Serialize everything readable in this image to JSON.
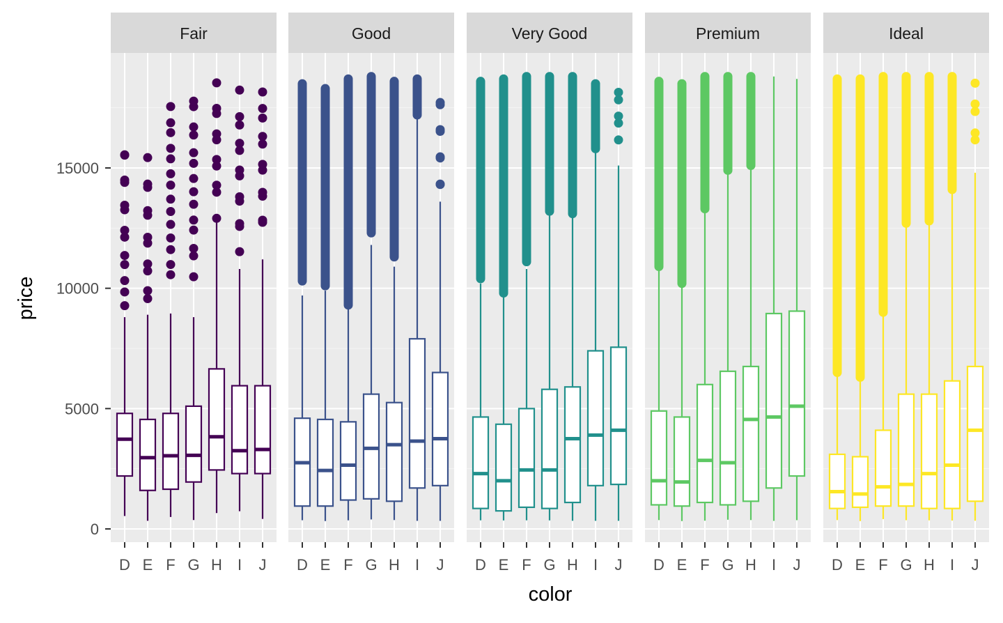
{
  "chart_data": {
    "type": "boxplot",
    "xlabel": "color",
    "ylabel": "price",
    "yticks": [
      0,
      5000,
      10000,
      15000
    ],
    "ylim": [
      -500,
      19500
    ],
    "categories": [
      "D",
      "E",
      "F",
      "G",
      "H",
      "I",
      "J"
    ],
    "grid": true,
    "facets": [
      {
        "name": "Fair",
        "color": "#440154",
        "boxes": [
          {
            "min": 536,
            "q1": 2200,
            "median": 3730,
            "q3": 4800,
            "whisker_high": 8800,
            "outliers_low": 8700,
            "outliers_high": 16400,
            "outlier_sparse": true
          },
          {
            "min": 337,
            "q1": 1600,
            "median": 2960,
            "q3": 4550,
            "whisker_high": 8900,
            "outliers_low": 8950,
            "outliers_high": 15600,
            "outlier_sparse": true
          },
          {
            "min": 496,
            "q1": 1650,
            "median": 3040,
            "q3": 4800,
            "whisker_high": 8950,
            "outliers_low": 9900,
            "outliers_high": 18100,
            "outlier_sparse": true
          },
          {
            "min": 369,
            "q1": 1950,
            "median": 3060,
            "q3": 5100,
            "whisker_high": 8800,
            "outliers_low": 10000,
            "outliers_high": 18600,
            "outlier_sparse": true
          },
          {
            "min": 659,
            "q1": 2450,
            "median": 3830,
            "q3": 6650,
            "whisker_high": 12900,
            "outliers_low": 12900,
            "outliers_high": 18600,
            "outlier_sparse": true
          },
          {
            "min": 735,
            "q1": 2300,
            "median": 3250,
            "q3": 5950,
            "whisker_high": 10800,
            "outliers_low": 11300,
            "outliers_high": 18300,
            "outlier_sparse": true
          },
          {
            "min": 416,
            "q1": 2300,
            "median": 3300,
            "q3": 5950,
            "whisker_high": 11200,
            "outliers_low": 12000,
            "outliers_high": 18600,
            "outlier_sparse": true
          }
        ]
      },
      {
        "name": "Good",
        "color": "#3B528B",
        "boxes": [
          {
            "min": 361,
            "q1": 950,
            "median": 2750,
            "q3": 4600,
            "whisker_high": 9700,
            "outliers_low": 10300,
            "outliers_high": 18500,
            "outlier_sparse": false
          },
          {
            "min": 327,
            "q1": 950,
            "median": 2430,
            "q3": 4550,
            "whisker_high": 9900,
            "outliers_low": 10100,
            "outliers_high": 18300,
            "outlier_sparse": false
          },
          {
            "min": 357,
            "q1": 1200,
            "median": 2650,
            "q3": 4450,
            "whisker_high": 9200,
            "outliers_low": 9300,
            "outliers_high": 18700,
            "outlier_sparse": false
          },
          {
            "min": 394,
            "q1": 1250,
            "median": 3350,
            "q3": 5600,
            "whisker_high": 11800,
            "outliers_low": 12300,
            "outliers_high": 18800,
            "outlier_sparse": false
          },
          {
            "min": 368,
            "q1": 1150,
            "median": 3500,
            "q3": 5250,
            "whisker_high": 10900,
            "outliers_low": 11300,
            "outliers_high": 18600,
            "outlier_sparse": false
          },
          {
            "min": 335,
            "q1": 1700,
            "median": 3650,
            "q3": 7900,
            "whisker_high": 17100,
            "outliers_low": 17200,
            "outliers_high": 18700,
            "outlier_sparse": false
          },
          {
            "min": 335,
            "q1": 1800,
            "median": 3750,
            "q3": 6500,
            "whisker_high": 13600,
            "outliers_low": 13700,
            "outliers_high": 18300,
            "outlier_sparse": true
          }
        ]
      },
      {
        "name": "Very Good",
        "color": "#21908C",
        "boxes": [
          {
            "min": 357,
            "q1": 850,
            "median": 2300,
            "q3": 4650,
            "whisker_high": 10200,
            "outliers_low": 10400,
            "outliers_high": 18600,
            "outlier_sparse": false
          },
          {
            "min": 352,
            "q1": 750,
            "median": 2000,
            "q3": 4350,
            "whisker_high": 9700,
            "outliers_low": 9800,
            "outliers_high": 18700,
            "outlier_sparse": false
          },
          {
            "min": 357,
            "q1": 900,
            "median": 2450,
            "q3": 5000,
            "whisker_high": 10800,
            "outliers_low": 11100,
            "outliers_high": 18800,
            "outlier_sparse": false
          },
          {
            "min": 354,
            "q1": 850,
            "median": 2450,
            "q3": 5800,
            "whisker_high": 13100,
            "outliers_low": 13200,
            "outliers_high": 18800,
            "outlier_sparse": false
          },
          {
            "min": 337,
            "q1": 1100,
            "median": 3750,
            "q3": 5900,
            "whisker_high": 13000,
            "outliers_low": 13100,
            "outliers_high": 18800,
            "outlier_sparse": false
          },
          {
            "min": 336,
            "q1": 1800,
            "median": 3900,
            "q3": 7400,
            "whisker_high": 15700,
            "outliers_low": 15800,
            "outliers_high": 18500,
            "outlier_sparse": false
          },
          {
            "min": 336,
            "q1": 1850,
            "median": 4100,
            "q3": 7550,
            "whisker_high": 15100,
            "outliers_low": 16100,
            "outliers_high": 18400,
            "outlier_sparse": true
          }
        ]
      },
      {
        "name": "Premium",
        "color": "#5DC863",
        "boxes": [
          {
            "min": 367,
            "q1": 1000,
            "median": 2000,
            "q3": 4900,
            "whisker_high": 10800,
            "outliers_low": 10900,
            "outliers_high": 18600,
            "outlier_sparse": false
          },
          {
            "min": 326,
            "q1": 950,
            "median": 1950,
            "q3": 4650,
            "whisker_high": 10100,
            "outliers_low": 10200,
            "outliers_high": 18500,
            "outlier_sparse": false
          },
          {
            "min": 342,
            "q1": 1100,
            "median": 2850,
            "q3": 6000,
            "whisker_high": 13200,
            "outliers_low": 13300,
            "outliers_high": 18800,
            "outlier_sparse": false
          },
          {
            "min": 382,
            "q1": 1000,
            "median": 2750,
            "q3": 6550,
            "whisker_high": 14800,
            "outliers_low": 14900,
            "outliers_high": 18800,
            "outlier_sparse": false
          },
          {
            "min": 368,
            "q1": 1150,
            "median": 4550,
            "q3": 6750,
            "whisker_high": 15000,
            "outliers_low": 15100,
            "outliers_high": 18800,
            "outlier_sparse": false
          },
          {
            "min": 334,
            "q1": 1700,
            "median": 4650,
            "q3": 8950,
            "whisker_high": 18800,
            "outliers_low": null,
            "outliers_high": null,
            "outlier_sparse": false
          },
          {
            "min": 363,
            "q1": 2200,
            "median": 5100,
            "q3": 9050,
            "whisker_high": 18700,
            "outliers_low": null,
            "outliers_high": null,
            "outlier_sparse": false
          }
        ]
      },
      {
        "name": "Ideal",
        "color": "#FDE725",
        "boxes": [
          {
            "min": 367,
            "q1": 850,
            "median": 1550,
            "q3": 3100,
            "whisker_high": 6400,
            "outliers_low": 6500,
            "outliers_high": 18700,
            "outlier_sparse": false
          },
          {
            "min": 326,
            "q1": 900,
            "median": 1450,
            "q3": 3000,
            "whisker_high": 6200,
            "outliers_low": 6300,
            "outliers_high": 18700,
            "outlier_sparse": false
          },
          {
            "min": 408,
            "q1": 950,
            "median": 1750,
            "q3": 4100,
            "whisker_high": 8900,
            "outliers_low": 9000,
            "outliers_high": 18800,
            "outlier_sparse": false
          },
          {
            "min": 361,
            "q1": 950,
            "median": 1850,
            "q3": 5600,
            "whisker_high": 12600,
            "outliers_low": 12700,
            "outliers_high": 18800,
            "outlier_sparse": false
          },
          {
            "min": 357,
            "q1": 850,
            "median": 2300,
            "q3": 5600,
            "whisker_high": 12700,
            "outliers_low": 12800,
            "outliers_high": 18800,
            "outlier_sparse": false
          },
          {
            "min": 348,
            "q1": 850,
            "median": 2650,
            "q3": 6150,
            "whisker_high": 14000,
            "outliers_low": 14100,
            "outliers_high": 18800,
            "outlier_sparse": false
          },
          {
            "min": 340,
            "q1": 1150,
            "median": 4100,
            "q3": 6750,
            "whisker_high": 14800,
            "outliers_low": 15800,
            "outliers_high": 18600,
            "outlier_sparse": true
          }
        ]
      }
    ]
  }
}
